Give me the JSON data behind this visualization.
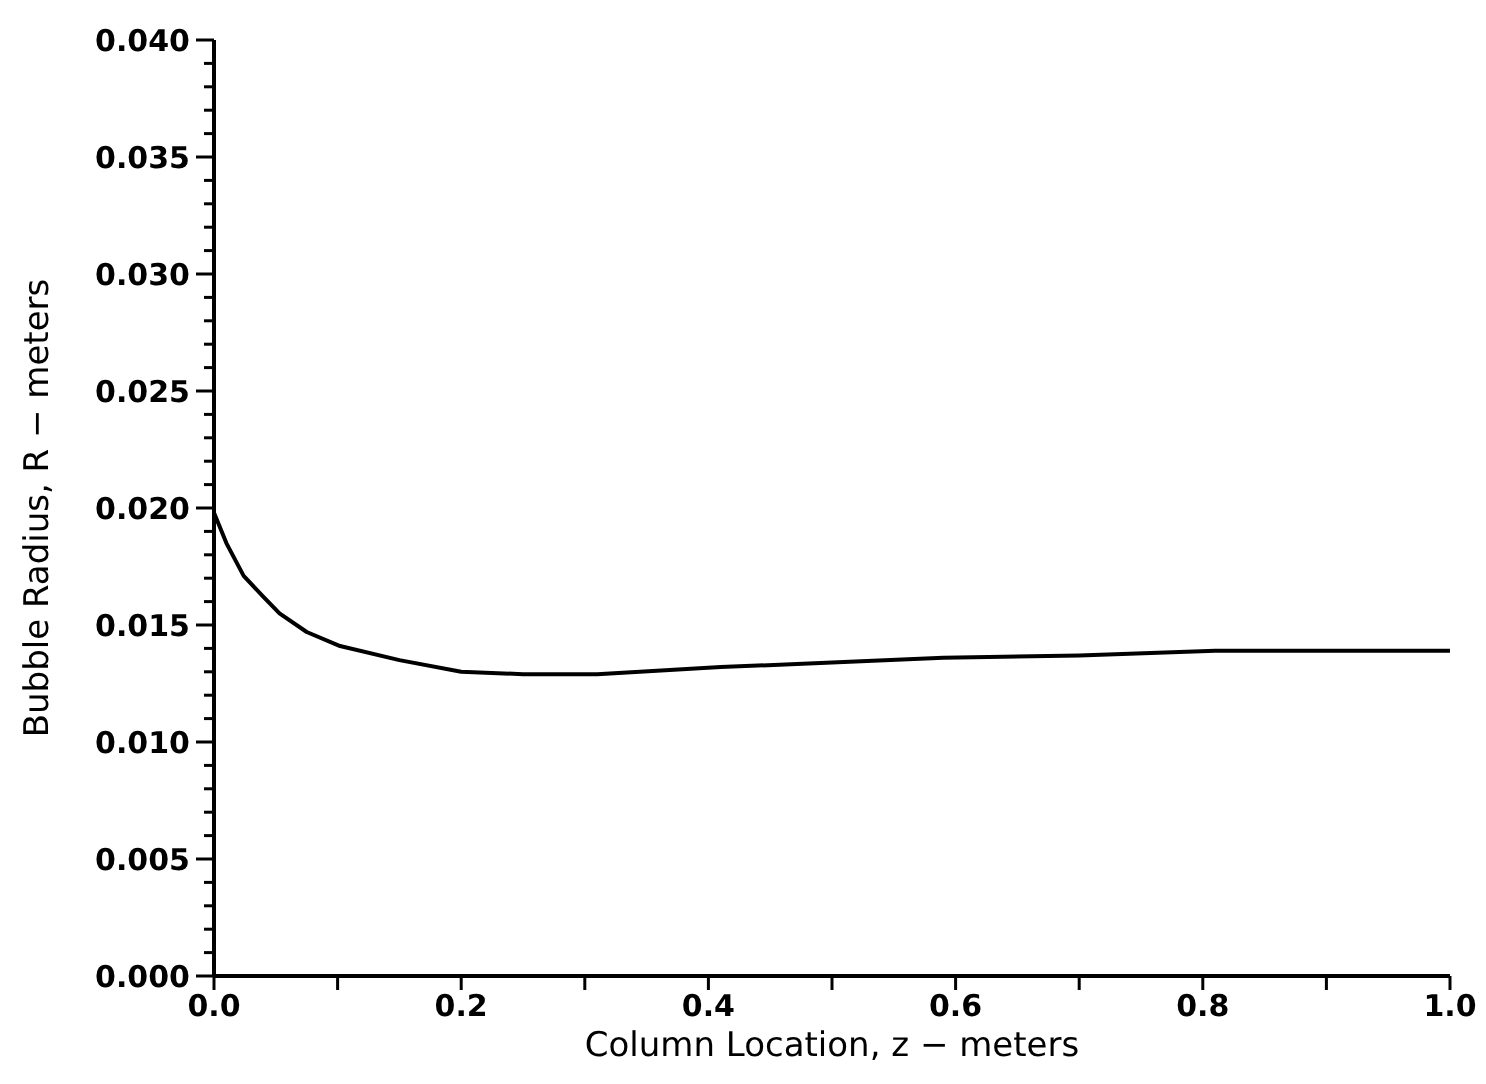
{
  "chart_data": {
    "type": "line",
    "xlabel": "Column Location, z − meters",
    "ylabel": "Bubble Radius, R − meters",
    "x": [
      0,
      0.01,
      0.024,
      0.04,
      0.053,
      0.075,
      0.102,
      0.15,
      0.2,
      0.25,
      0.31,
      0.41,
      0.5,
      0.59,
      0.7,
      0.81,
      0.9,
      1.0
    ],
    "series": [
      {
        "color": "#000000",
        "values": [
          0.0198,
          0.0185,
          0.0171,
          0.0162,
          0.0155,
          0.0147,
          0.0141,
          0.0135,
          0.013,
          0.0129,
          0.0129,
          0.0132,
          0.0134,
          0.0136,
          0.0137,
          0.0139,
          0.0139,
          0.0139
        ]
      }
    ],
    "xlim": [
      0,
      1
    ],
    "ylim": [
      0,
      0.04
    ],
    "xticks": [
      {
        "value": 0,
        "label": "0.0"
      },
      {
        "value": 0.1,
        "label": null
      },
      {
        "value": 0.2,
        "label": "0.2"
      },
      {
        "value": 0.3,
        "label": null
      },
      {
        "value": 0.4,
        "label": "0.4"
      },
      {
        "value": 0.5,
        "label": null
      },
      {
        "value": 0.6,
        "label": "0.6"
      },
      {
        "value": 0.7,
        "label": null
      },
      {
        "value": 0.8,
        "label": "0.8"
      },
      {
        "value": 0.9,
        "label": null
      },
      {
        "value": 1,
        "label": "1.0"
      }
    ],
    "yticks": [
      {
        "value": 0,
        "label": "0.000"
      },
      {
        "value": 0.005,
        "label": "0.005"
      },
      {
        "value": 0.01,
        "label": "0.010"
      },
      {
        "value": 0.015,
        "label": "0.015"
      },
      {
        "value": 0.02,
        "label": "0.020"
      },
      {
        "value": 0.025,
        "label": "0.025"
      },
      {
        "value": 0.03,
        "label": "0.030"
      },
      {
        "value": 0.035,
        "label": "0.035"
      },
      {
        "value": 0.04,
        "label": "0.040"
      }
    ],
    "grid": false,
    "marker": "none",
    "line_style": "solid"
  }
}
